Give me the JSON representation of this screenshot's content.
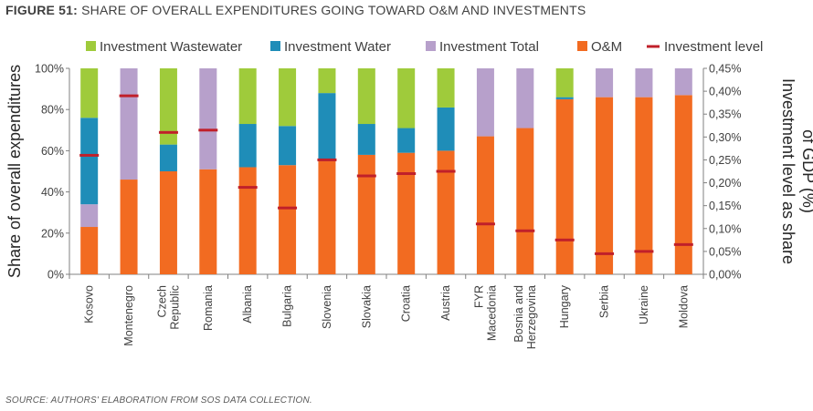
{
  "figure": {
    "number": "FIGURE 51:",
    "title": "SHARE OF OVERALL EXPENDITURES GOING TOWARD O&M AND INVESTMENTS",
    "source": "SOURCE: AUTHORS' ELABORATION FROM SOS DATA COLLECTION."
  },
  "chart_data": {
    "type": "bar",
    "stacked": true,
    "ylabel": "Share of overall expenditures",
    "y2label": [
      "Investment level as share",
      "of GDP (%)"
    ],
    "ylim": [
      0,
      100
    ],
    "y2lim": [
      0,
      0.45
    ],
    "yticks": [
      "0%",
      "20%",
      "40%",
      "60%",
      "80%",
      "100%"
    ],
    "y2ticks": [
      "0,00%",
      "0,05%",
      "0,10%",
      "0,15%",
      "0,20%",
      "0,25%",
      "0,30%",
      "0,35%",
      "0,40%",
      "0,45%"
    ],
    "categories": [
      [
        "Kosovo"
      ],
      [
        "Montenegro"
      ],
      [
        "Czech",
        "Republic"
      ],
      [
        "Romania"
      ],
      [
        "Albania"
      ],
      [
        "Bulgaria"
      ],
      [
        "Slovenia"
      ],
      [
        "Slovakia"
      ],
      [
        "Croatia"
      ],
      [
        "Austria"
      ],
      [
        "FYR",
        "Macedonia"
      ],
      [
        "Bosnia and",
        "Herzegovina"
      ],
      [
        "Hungary"
      ],
      [
        "Serbia"
      ],
      [
        "Ukraine"
      ],
      [
        "Moldova"
      ]
    ],
    "series": [
      {
        "name": "O&M",
        "color": "#F26B21",
        "values": [
          23,
          46,
          50,
          51,
          52,
          53,
          55,
          58,
          59,
          60,
          67,
          71,
          85,
          86,
          86,
          87
        ]
      },
      {
        "name": "Investment Total",
        "color": "#B7A0CB",
        "values": [
          11,
          54,
          0,
          49,
          0,
          0,
          0,
          0,
          0,
          0,
          33,
          29,
          0,
          14,
          14,
          13
        ]
      },
      {
        "name": "Investment Water",
        "color": "#1F8DB8",
        "values": [
          42,
          0,
          13,
          0,
          21,
          19,
          33,
          15,
          12,
          21,
          0,
          0,
          1,
          0,
          0,
          0
        ]
      },
      {
        "name": "Investment Wastewater",
        "color": "#9FCB3B",
        "values": [
          24,
          0,
          37,
          0,
          27,
          28,
          12,
          27,
          29,
          19,
          0,
          0,
          14,
          0,
          0,
          0
        ]
      }
    ],
    "line_series": {
      "name": "Investment level",
      "color": "#C0202A",
      "axis": "right",
      "values": [
        0.26,
        0.39,
        0.31,
        0.315,
        0.19,
        0.145,
        0.25,
        0.215,
        0.22,
        0.225,
        0.11,
        0.095,
        0.075,
        0.045,
        0.05,
        0.065
      ]
    },
    "legend": [
      {
        "name": "Investment Wastewater",
        "color": "#9FCB3B",
        "kind": "box"
      },
      {
        "name": "Investment Water",
        "color": "#1F8DB8",
        "kind": "box"
      },
      {
        "name": "Investment Total",
        "color": "#B7A0CB",
        "kind": "box"
      },
      {
        "name": "O&M",
        "color": "#F26B21",
        "kind": "box"
      },
      {
        "name": "Investment level",
        "color": "#C0202A",
        "kind": "line"
      }
    ],
    "legend_position": "top"
  }
}
